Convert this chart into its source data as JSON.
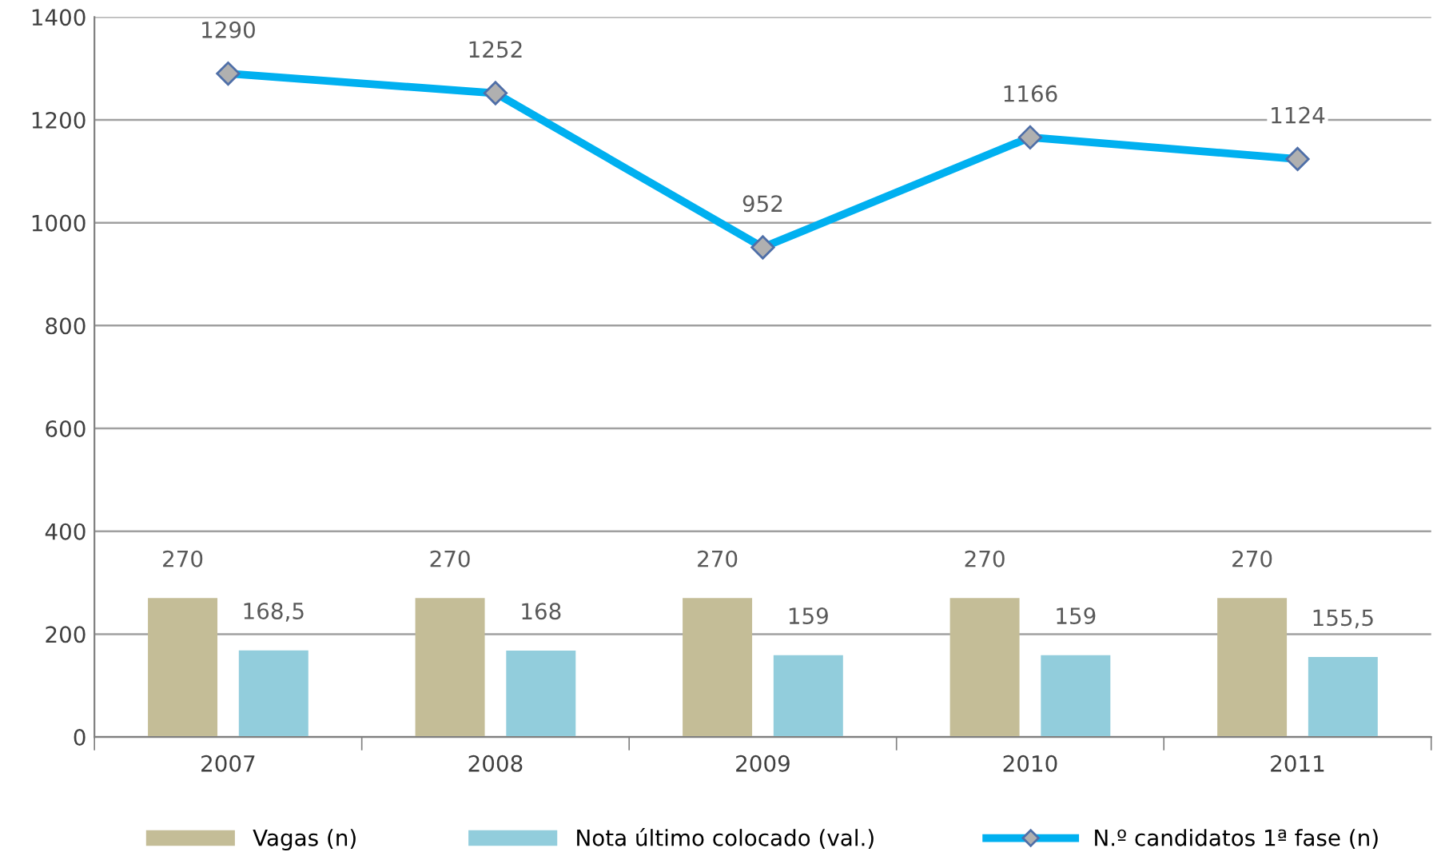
{
  "chart_data": {
    "type": "bar",
    "categories": [
      "2007",
      "2008",
      "2009",
      "2010",
      "2011"
    ],
    "series": [
      {
        "name": "Vagas (n)",
        "color": "#c4bd97",
        "values": [
          270,
          270,
          270,
          270,
          270
        ],
        "value_labels": [
          "270",
          "270",
          "270",
          "270",
          "270"
        ]
      },
      {
        "name": "Nota último colocado (val.)",
        "color": "#92cddc",
        "values": [
          168.5,
          168,
          159,
          159,
          155.5
        ],
        "value_labels": [
          "168,5",
          "168",
          "159",
          "159",
          "155,5"
        ]
      },
      {
        "name": "N.º candidatos 1ª fase (n)",
        "type": "line",
        "color": "#00b0f0",
        "marker": "diamond",
        "line_style": "solid",
        "values": [
          1290,
          1252,
          952,
          1166,
          1124
        ],
        "value_labels": [
          "1290",
          "1252",
          "952",
          "1166",
          "1124"
        ]
      }
    ],
    "ylim": [
      0,
      1400
    ],
    "yticks": [
      0,
      200,
      400,
      600,
      800,
      1000,
      1200,
      1400
    ],
    "grid": "y",
    "legend": "bottom"
  }
}
